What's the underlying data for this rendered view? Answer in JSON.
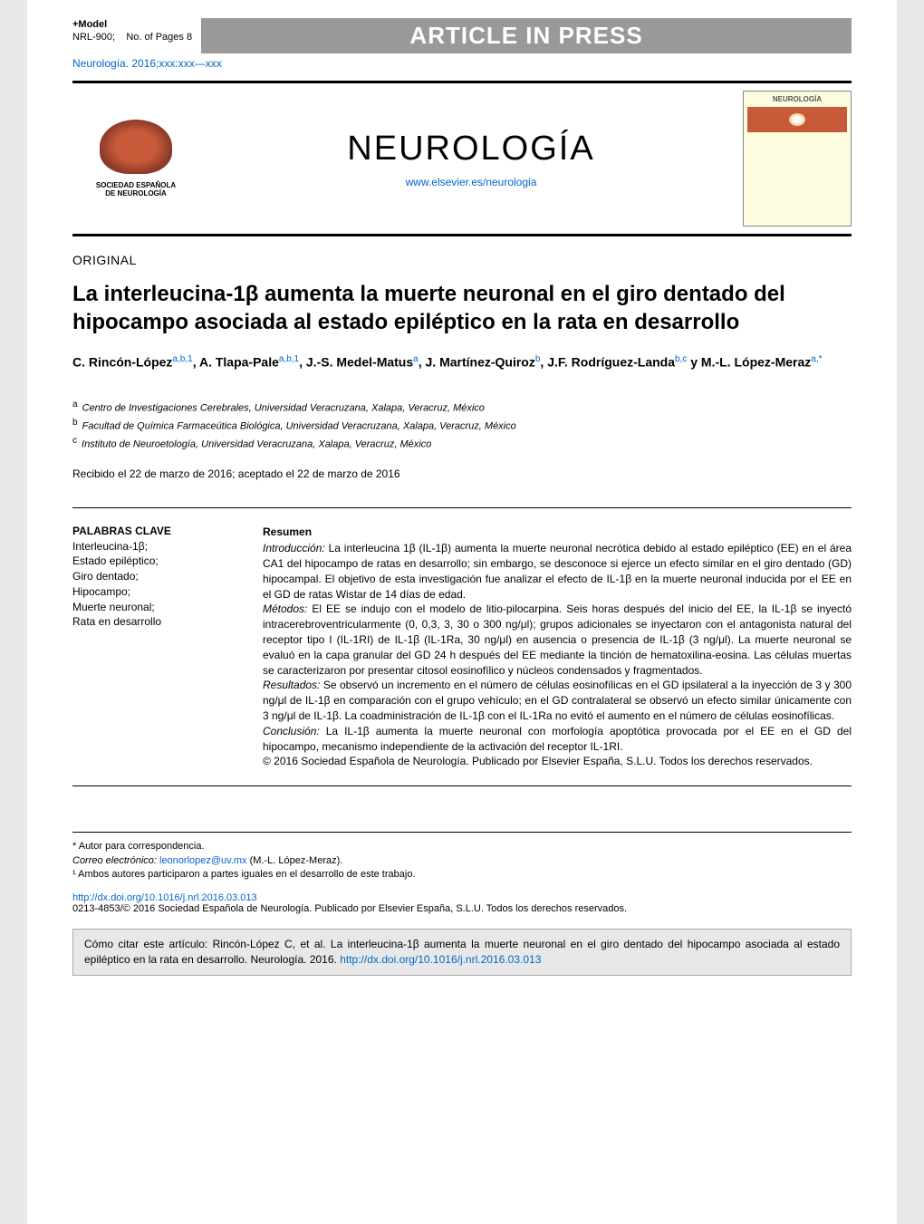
{
  "header": {
    "model_label": "+Model",
    "ref_code": "NRL-900;",
    "pages_label": "No. of Pages 8",
    "banner": "ARTICLE IN PRESS",
    "citation": "Neurología. 2016;xxx:xxx—xxx"
  },
  "journal": {
    "title": "NEUROLOGÍA",
    "link": "www.elsevier.es/neurologia",
    "society_name_line1": "SOCIEDAD ESPAÑOLA",
    "society_name_line2": "DE NEUROLOGÍA",
    "cover_title": "NEUROLOGÍA"
  },
  "article": {
    "section": "ORIGINAL",
    "title": "La interleucina-1β aumenta la muerte neuronal en el giro dentado del hipocampo asociada al estado epiléptico en la rata en desarrollo",
    "authors_html": "C. Rincón-López",
    "authors": [
      {
        "name": "C. Rincón-López",
        "sup": "a,b,1"
      },
      {
        "name": "A. Tlapa-Pale",
        "sup": "a,b,1"
      },
      {
        "name": "J.-S. Medel-Matus",
        "sup": "a"
      },
      {
        "name": "J. Martínez-Quiroz",
        "sup": "b"
      },
      {
        "name": "J.F. Rodríguez-Landa",
        "sup": "b,c"
      },
      {
        "name": "M.-L. López-Meraz",
        "sup": "a,*",
        "last_connector": " y "
      }
    ],
    "affiliations": [
      {
        "sup": "a",
        "text": "Centro de Investigaciones Cerebrales, Universidad Veracruzana, Xalapa, Veracruz, México"
      },
      {
        "sup": "b",
        "text": "Facultad de Química Farmaceútica Biológica, Universidad Veracruzana, Xalapa, Veracruz, México"
      },
      {
        "sup": "c",
        "text": "Instituto de Neuroetología, Universidad Veracruzana, Xalapa, Veracruz, México"
      }
    ],
    "dates": "Recibido el 22 de marzo de 2016; aceptado el 22 de marzo de 2016"
  },
  "keywords": {
    "heading": "PALABRAS CLAVE",
    "items": "Interleucina-1β;\nEstado epiléptico;\nGiro dentado;\nHipocampo;\nMuerte neuronal;\nRata en desarrollo"
  },
  "abstract": {
    "heading": "Resumen",
    "intro_label": "Introducción:",
    "intro": " La interleucina 1β (IL-1β) aumenta la muerte neuronal necrótica debido al estado epiléptico (EE) en el área CA1 del hipocampo de ratas en desarrollo; sin embargo, se desconoce si ejerce un efecto similar en el giro dentado (GD) hipocampal. El objetivo de esta investigación fue analizar el efecto de IL-1β en la muerte neuronal inducida por el EE en el GD de ratas Wistar de 14 días de edad.",
    "methods_label": "Métodos:",
    "methods": " El EE se indujo con el modelo de litio-pilocarpina. Seis horas después del inicio del EE, la IL-1β se inyectó intracerebroventricularmente (0, 0,3, 3, 30 o 300 ng/μl); grupos adicionales se inyectaron con el antagonista natural del receptor tipo I (IL-1RI) de IL-1β (IL-1Ra, 30 ng/μl) en ausencia o presencia de IL-1β (3 ng/μl). La muerte neuronal se evaluó en la capa granular del GD 24 h después del EE mediante la tinción de hematoxilina-eosina. Las células muertas se caracterizaron por presentar citosol eosinofílico y núcleos condensados y fragmentados.",
    "results_label": "Resultados:",
    "results": " Se observó un incremento en el número de células eosinofílicas en el GD ipsilateral a la inyección de 3 y 300 ng/μl de IL-1β en comparación con el grupo vehículo; en el GD contralateral se observó un efecto similar únicamente con 3 ng/μl de IL-1β. La coadministración de IL-1β con el IL-1Ra no evitó el aumento en el número de células eosinofílicas.",
    "conclusion_label": "Conclusión:",
    "conclusion": " La IL-1β aumenta la muerte neuronal con morfología apoptótica provocada por el EE en el GD del hipocampo, mecanismo independiente de la activación del receptor IL-1RI.",
    "copyright": "© 2016 Sociedad Española de Neurología. Publicado por Elsevier España, S.L.U. Todos los derechos reservados."
  },
  "footnotes": {
    "corr_label": "* Autor para correspondencia.",
    "email_label": "Correo electrónico:",
    "email": "leonorlopez@uv.mx",
    "email_author": "(M.-L. López-Meraz).",
    "note1": "¹ Ambos autores participaron a partes iguales en el desarrollo de este trabajo."
  },
  "bottom": {
    "doi": "http://dx.doi.org/10.1016/j.nrl.2016.03.013",
    "copyright": "0213-4853/© 2016 Sociedad Española de Neurología. Publicado por Elsevier España, S.L.U. Todos los derechos reservados."
  },
  "citebox": {
    "text": "Cómo citar este artículo: Rincón-López C, et al. La interleucina-1β aumenta la muerte neuronal en el giro dentado del hipocampo asociada al estado epiléptico en la rata en desarrollo. Neurología. 2016.",
    "doi": "http://dx.doi.org/10.1016/j.nrl.2016.03.013"
  },
  "colors": {
    "link": "#0066cc",
    "banner_bg": "#999999",
    "brain": "#c85a3a",
    "page_bg": "#ffffff",
    "outer_bg": "#e8e8e8",
    "citebox_bg": "#e8e8e8"
  }
}
